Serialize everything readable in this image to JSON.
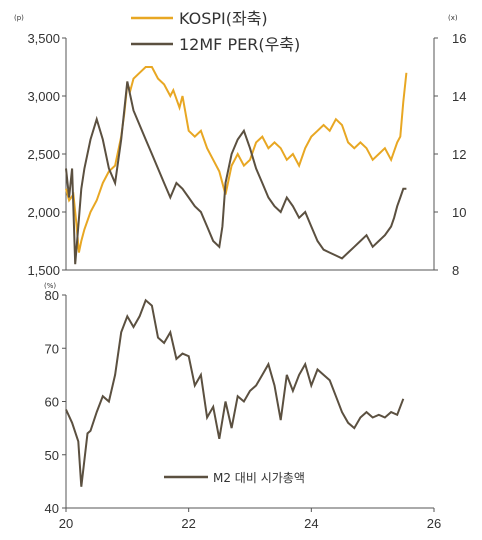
{
  "chart_data": [
    {
      "type": "line",
      "left_unit": "(p)",
      "right_unit": "(x)",
      "left_ylim": [
        1500,
        3500
      ],
      "right_ylim": [
        8,
        16
      ],
      "xlim": [
        20,
        25.6
      ],
      "left_ticks": [
        "3,500",
        "3,000",
        "2,500",
        "2,000",
        "1,500"
      ],
      "left_tick_values": [
        3500,
        3000,
        2500,
        2000,
        1500
      ],
      "right_ticks": [
        "16",
        "14",
        "12",
        "10",
        "8"
      ],
      "right_tick_values": [
        16,
        14,
        12,
        10,
        8
      ],
      "colors": {
        "kospi": "#E8A723",
        "per": "#5B5040"
      },
      "series": [
        {
          "name": "KOSPI(좌축)",
          "axis": "left",
          "x": [
            20.0,
            20.05,
            20.12,
            20.17,
            20.21,
            20.25,
            20.3,
            20.4,
            20.5,
            20.6,
            20.7,
            20.8,
            20.9,
            20.95,
            21.0,
            21.05,
            21.1,
            21.2,
            21.3,
            21.4,
            21.5,
            21.6,
            21.7,
            21.75,
            21.85,
            21.9,
            22.0,
            22.1,
            22.2,
            22.3,
            22.4,
            22.5,
            22.6,
            22.7,
            22.75,
            22.8,
            22.9,
            23.0,
            23.1,
            23.2,
            23.3,
            23.4,
            23.5,
            23.6,
            23.7,
            23.8,
            23.9,
            24.0,
            24.1,
            24.2,
            24.3,
            24.4,
            24.5,
            24.6,
            24.7,
            24.8,
            24.9,
            25.0,
            25.1,
            25.2,
            25.3,
            25.4,
            25.45,
            25.5,
            25.55
          ],
          "values": [
            2200,
            2100,
            2150,
            1900,
            1650,
            1750,
            1850,
            2000,
            2100,
            2250,
            2350,
            2400,
            2650,
            2850,
            3100,
            3050,
            3150,
            3200,
            3250,
            3250,
            3150,
            3100,
            3000,
            3050,
            2900,
            3000,
            2700,
            2650,
            2700,
            2550,
            2450,
            2350,
            2150,
            2400,
            2450,
            2500,
            2400,
            2450,
            2600,
            2650,
            2550,
            2600,
            2550,
            2450,
            2500,
            2400,
            2550,
            2650,
            2700,
            2750,
            2700,
            2800,
            2750,
            2600,
            2550,
            2600,
            2550,
            2450,
            2500,
            2550,
            2450,
            2600,
            2650,
            2950,
            3200
          ]
        },
        {
          "name": "12MF PER(우축)",
          "axis": "right",
          "x": [
            20.0,
            20.05,
            20.1,
            20.15,
            20.2,
            20.25,
            20.3,
            20.4,
            20.5,
            20.6,
            20.7,
            20.8,
            20.9,
            21.0,
            21.05,
            21.1,
            21.2,
            21.3,
            21.4,
            21.5,
            21.6,
            21.7,
            21.8,
            21.9,
            22.0,
            22.1,
            22.2,
            22.3,
            22.4,
            22.5,
            22.55,
            22.6,
            22.7,
            22.8,
            22.9,
            23.0,
            23.1,
            23.2,
            23.3,
            23.4,
            23.5,
            23.6,
            23.7,
            23.8,
            23.9,
            24.0,
            24.1,
            24.2,
            24.3,
            24.4,
            24.5,
            24.6,
            24.7,
            24.8,
            24.9,
            25.0,
            25.1,
            25.2,
            25.3,
            25.35,
            25.4,
            25.45,
            25.5,
            25.55
          ],
          "values": [
            11.5,
            10.5,
            11.5,
            8.2,
            9.5,
            10.8,
            11.5,
            12.5,
            13.2,
            12.5,
            11.5,
            11.0,
            12.5,
            14.5,
            14.0,
            13.5,
            13.0,
            12.5,
            12.0,
            11.5,
            11.0,
            10.5,
            11.0,
            10.8,
            10.5,
            10.2,
            10.0,
            9.5,
            9.0,
            8.8,
            9.5,
            11.0,
            12.0,
            12.5,
            12.8,
            12.2,
            11.5,
            11.0,
            10.5,
            10.2,
            10.0,
            10.5,
            10.2,
            9.8,
            10.0,
            9.5,
            9.0,
            8.7,
            8.6,
            8.5,
            8.4,
            8.6,
            8.8,
            9.0,
            9.2,
            8.8,
            9.0,
            9.2,
            9.5,
            9.8,
            10.2,
            10.5,
            10.8,
            10.8
          ]
        }
      ]
    },
    {
      "type": "line",
      "left_unit": "(%)",
      "ylim": [
        40,
        80
      ],
      "xlim": [
        20,
        26
      ],
      "y_ticks": [
        "80",
        "70",
        "60",
        "50",
        "40"
      ],
      "y_tick_values": [
        80,
        70,
        60,
        50,
        40
      ],
      "x_ticks": [
        "20",
        "22",
        "24",
        "26"
      ],
      "x_tick_values": [
        20,
        22,
        24,
        26
      ],
      "colors": {
        "m2": "#5B5040"
      },
      "series": [
        {
          "name": "M2 대비 시가총액",
          "x": [
            20.0,
            20.1,
            20.2,
            20.25,
            20.3,
            20.35,
            20.4,
            20.5,
            20.6,
            20.7,
            20.8,
            20.9,
            21.0,
            21.1,
            21.2,
            21.3,
            21.4,
            21.5,
            21.6,
            21.7,
            21.8,
            21.9,
            22.0,
            22.1,
            22.2,
            22.3,
            22.4,
            22.5,
            22.6,
            22.7,
            22.8,
            22.9,
            23.0,
            23.1,
            23.2,
            23.3,
            23.4,
            23.5,
            23.6,
            23.7,
            23.8,
            23.9,
            24.0,
            24.1,
            24.2,
            24.3,
            24.4,
            24.5,
            24.6,
            24.7,
            24.8,
            24.9,
            25.0,
            25.1,
            25.2,
            25.3,
            25.4,
            25.5
          ],
          "values": [
            58.5,
            56,
            52.5,
            44,
            49,
            54,
            54.5,
            58,
            61,
            60,
            65,
            73,
            76,
            74,
            76,
            79,
            78,
            72,
            71,
            73,
            68,
            69,
            68.5,
            63,
            65,
            57,
            59,
            53,
            60,
            55,
            61,
            60,
            62,
            63,
            65,
            67,
            63,
            56.5,
            65,
            62,
            65,
            67,
            63,
            66,
            65,
            64,
            61,
            58,
            56,
            55,
            57,
            58,
            57,
            57.5,
            57,
            58,
            57.5,
            60.5
          ]
        }
      ]
    }
  ]
}
